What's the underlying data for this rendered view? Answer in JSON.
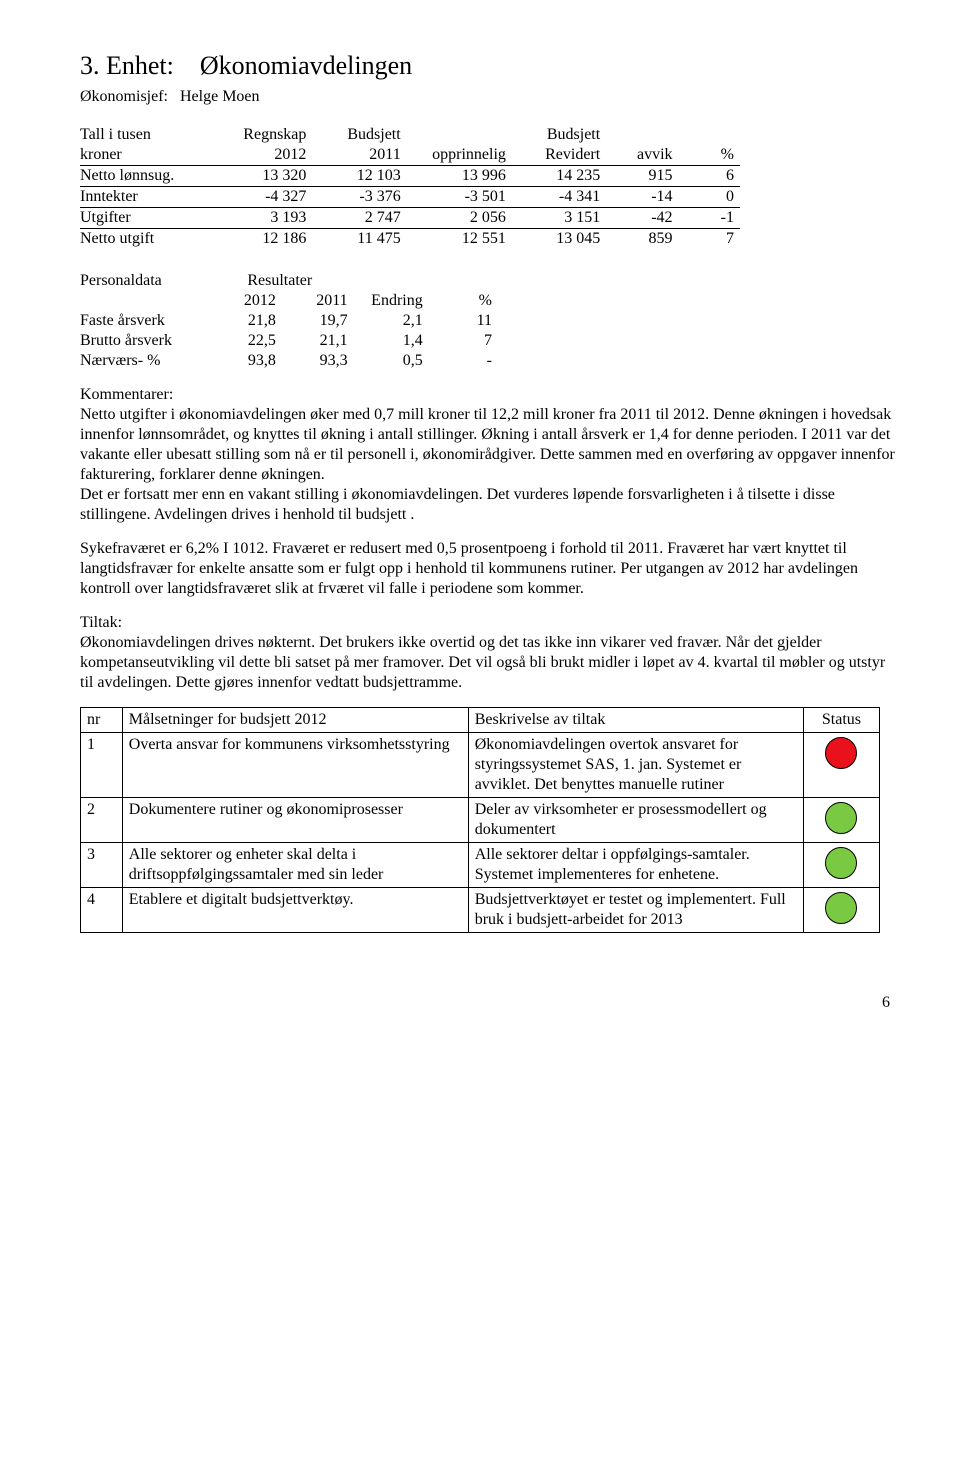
{
  "title_num": "3.",
  "title_label": "Enhet:",
  "title_name": "Økonomiavdelingen",
  "chief_label": "Økonomisjef:",
  "chief_name": "Helge Moen",
  "fin": {
    "h1": [
      "Tall i tusen",
      "Regnskap",
      "Budsjett",
      "",
      "Budsjett",
      "",
      ""
    ],
    "h2": [
      "kroner",
      "2012",
      "2011",
      "opprinnelig",
      "Revidert",
      "avvik",
      "%"
    ],
    "rows": [
      [
        "Netto lønnsug.",
        "13 320",
        "12 103",
        "13 996",
        "14 235",
        "915",
        "6"
      ],
      [
        "Inntekter",
        "-4 327",
        "-3 376",
        "-3 501",
        "-4 341",
        "-14",
        "0"
      ],
      [
        "Utgifter",
        "3 193",
        "2 747",
        "2 056",
        "3 151",
        "-42",
        "-1"
      ],
      [
        "Netto utgift",
        "12 186",
        "11 475",
        "12 551",
        "13 045",
        "859",
        "7"
      ]
    ]
  },
  "pers": {
    "hdr1": [
      "Personaldata",
      "Resultater",
      "",
      "",
      ""
    ],
    "hdr2": [
      "",
      "2012",
      "2011",
      "Endring",
      "%"
    ],
    "rows": [
      [
        "Faste årsverk",
        "21,8",
        "19,7",
        "2,1",
        "11"
      ],
      [
        "Brutto årsverk",
        "22,5",
        "21,1",
        "1,4",
        "7"
      ],
      [
        "Nærværs- %",
        "93,8",
        "93,3",
        "0,5",
        "-"
      ]
    ]
  },
  "kom_label": "Kommentarer:",
  "para1": "Netto utgifter i økonomiavdelingen øker med 0,7 mill kroner til 12,2 mill kroner fra 2011 til 2012. Denne økningen i hovedsak innenfor lønnsområdet, og knyttes til økning i antall stillinger. Økning i antall årsverk er 1,4 for denne perioden.  I 2011 var det vakante eller ubesatt stilling som nå er til personell i, økonomirådgiver. Dette sammen med en overføring av oppgaver innenfor fakturering, forklarer denne økningen.",
  "para1b": "Det er fortsatt mer enn en vakant stilling i økonomiavdelingen. Det vurderes løpende forsvarligheten i å tilsette i disse stillingene. Avdelingen drives i henhold til budsjett .",
  "para2": "Sykefraværet er 6,2% I 1012. Fraværet er redusert med 0,5 prosentpoeng i forhold til 2011. Fraværet har vært knyttet til langtidsfravær for enkelte ansatte som er fulgt opp i henhold til kommunens rutiner. Per utgangen av 2012 har avdelingen kontroll over langtidsfraværet slik at frværet vil falle i periodene som kommer.",
  "tiltak_label": "Tiltak:",
  "para3": "Økonomiavdelingen drives nøkternt. Det brukers ikke overtid og det tas ikke inn vikarer ved fravær. Når det gjelder kompetanseutvikling vil dette bli satset på mer framover. Det vil også bli brukt midler i løpet av 4. kvartal til møbler og utstyr til avdelingen. Dette gjøres innenfor vedtatt budsjettramme.",
  "goals_hdr": [
    "nr",
    "Målsetninger for budsjett 2012",
    "Beskrivelse av tiltak",
    "Status"
  ],
  "goals": [
    {
      "nr": "1",
      "mal": "Overta ansvar for kommunens virksomhetsstyring",
      "bes": "Økonomiavdelingen overtok ansvaret for styringssystemet SAS, 1. jan. Systemet er avviklet. Det benyttes manuelle rutiner",
      "color": "red"
    },
    {
      "nr": "2",
      "mal": "Dokumentere rutiner og økonomiprosesser",
      "bes": "Deler av virksomheter er prosessmodellert og dokumentert",
      "color": "green"
    },
    {
      "nr": "3",
      "mal": "Alle sektorer og enheter skal delta i driftsoppfølgingssamtaler med sin leder",
      "bes": "Alle sektorer deltar i oppfølgings-samtaler. Systemet implementeres for enhetene.",
      "color": "green"
    },
    {
      "nr": "4",
      "mal": "Etablere et digitalt budsjettverktøy.",
      "bes": "Budsjettverktøyet er testet og implementert. Full bruk i budsjett-arbeidet for 2013",
      "color": "green"
    }
  ],
  "pagenum": "6",
  "colors": {
    "red": "#e8111c",
    "green": "#7ac943"
  }
}
